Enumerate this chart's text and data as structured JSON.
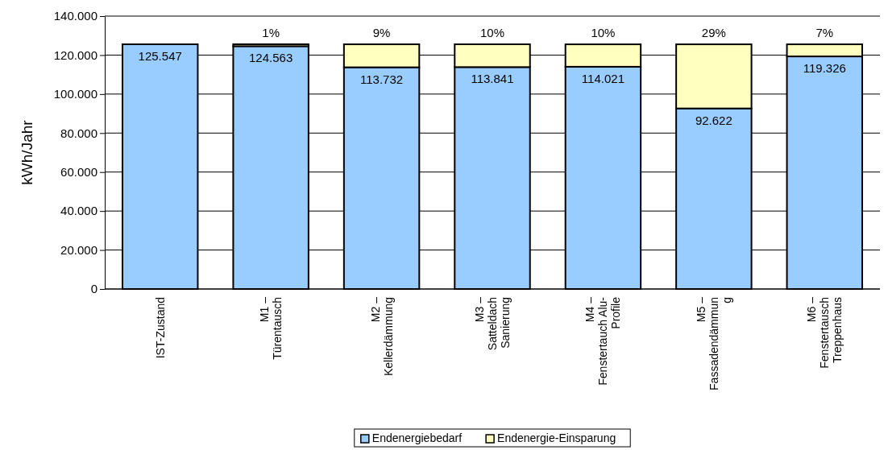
{
  "chart_data": {
    "type": "bar",
    "stacked": true,
    "ylabel": "kWh/Jahr",
    "categories": [
      "IST-Zustand",
      "M1 –\nTürentausch",
      "M2 –\nKellerdämmung",
      "M3 –\nSatteldach\nSanierung",
      "M4 –\nFenstertauch Alu-\nProfile",
      "M5 –\nFassadendämmun\ng",
      "M6 –\nFenstertausch\nTreppenhaus"
    ],
    "series": [
      {
        "name": "Endenergiebedarf",
        "color": "#99ccff",
        "values": [
          125547,
          124563,
          113732,
          113841,
          114021,
          92622,
          119326
        ],
        "value_labels": [
          "125.547",
          "124.563",
          "113.732",
          "113.841",
          "114.021",
          "92.622",
          "119.326"
        ]
      },
      {
        "name": "Endenergie-Einsparung",
        "color": "#ffffc0",
        "values": [
          0,
          1000,
          11800,
          11700,
          11500,
          32900,
          6200
        ]
      }
    ],
    "annotations": [
      {
        "text": "1%",
        "x": "M1 –\nTürentausch",
        "y": 126000
      },
      {
        "text": "9%",
        "x": "M2 –\nKellerdämmung",
        "y": 126000
      },
      {
        "text": "10%",
        "x": "M3 –\nSatteldach\nSanierung",
        "y": 126000
      },
      {
        "text": "10%",
        "x": "M4 –\nFenstertauch Alu-\nProfile",
        "y": 126000
      },
      {
        "text": "29%",
        "x": "M5 –\nFassadendämmun\ng",
        "y": 126000
      },
      {
        "text": "7%",
        "x": "M6 –\nFenstertausch\nTreppenhaus",
        "y": 126000
      }
    ],
    "ylim": [
      0,
      140000
    ],
    "yticks": [
      {
        "value": 0,
        "label": "0"
      },
      {
        "value": 20000,
        "label": "20.000"
      },
      {
        "value": 40000,
        "label": "40.000"
      },
      {
        "value": 60000,
        "label": "60.000"
      },
      {
        "value": 80000,
        "label": "80.000"
      },
      {
        "value": 100000,
        "label": "100.000"
      },
      {
        "value": 120000,
        "label": "120.000"
      },
      {
        "value": 140000,
        "label": "140.000"
      }
    ],
    "grid": "y",
    "legend": "bottom"
  }
}
